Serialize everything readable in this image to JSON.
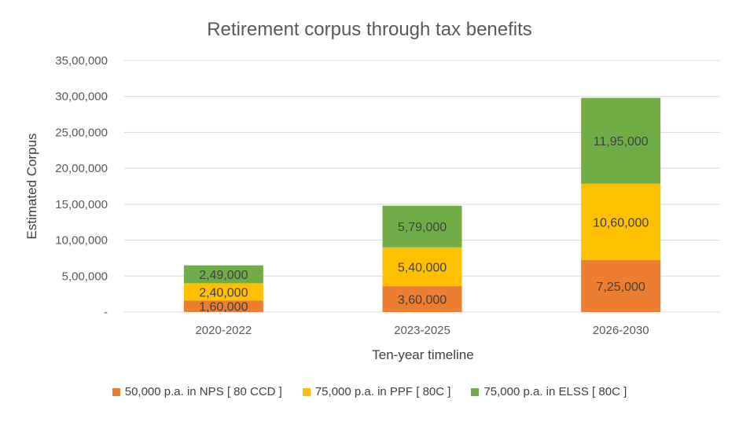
{
  "chart_data": {
    "type": "bar",
    "stacked": true,
    "title": "Retirement corpus through tax benefits",
    "xlabel": "Ten-year timeline",
    "ylabel": "Estimated Corpus",
    "categories": [
      "2020-2022",
      "2023-2025",
      "2026-2030"
    ],
    "ylim": [
      0,
      3500000
    ],
    "yticks": [
      0,
      500000,
      1000000,
      1500000,
      2000000,
      2500000,
      3000000,
      3500000
    ],
    "ytick_labels": [
      "-",
      "5,00,000",
      "10,00,000",
      "15,00,000",
      "20,00,000",
      "25,00,000",
      "30,00,000",
      "35,00,000"
    ],
    "grid": true,
    "legend_position": "bottom",
    "series": [
      {
        "name": "50,000 p.a. in NPS [ 80 CCD ]",
        "color": "#ED7D31",
        "values": [
          160000,
          360000,
          725000
        ],
        "labels": [
          "1,60,000",
          "3,60,000",
          "7,25,000"
        ]
      },
      {
        "name": "75,000 p.a. in PPF [ 80C ]",
        "color": "#FFC000",
        "values": [
          240000,
          540000,
          1060000
        ],
        "labels": [
          "2,40,000",
          "5,40,000",
          "10,60,000"
        ]
      },
      {
        "name": "75,000 p.a. in ELSS [ 80C ]",
        "color": "#70AD47",
        "values": [
          249000,
          579000,
          1195000
        ],
        "labels": [
          "2,49,000",
          "5,79,000",
          "11,95,000"
        ]
      }
    ]
  }
}
